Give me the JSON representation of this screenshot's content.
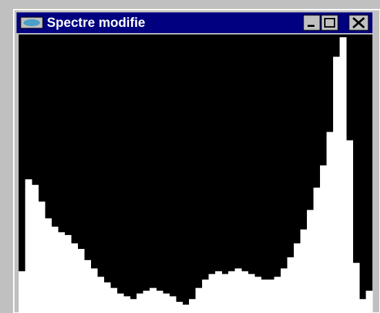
{
  "window": {
    "title": "Spectre modifie"
  },
  "chart_data": {
    "type": "bar",
    "color": "#ffffff",
    "ylim": [
      0,
      100
    ],
    "values": [
      15,
      48,
      46,
      40,
      34,
      31,
      29,
      28,
      25,
      23,
      19,
      16,
      13,
      11,
      9,
      7,
      6,
      5,
      7,
      8,
      9,
      8,
      7,
      6,
      4,
      3,
      5,
      9,
      12,
      14,
      15,
      14,
      15,
      16,
      15,
      14,
      13,
      12,
      12,
      13,
      16,
      20,
      25,
      30,
      37,
      45,
      53,
      65,
      92,
      99,
      62,
      18,
      5,
      8
    ]
  }
}
